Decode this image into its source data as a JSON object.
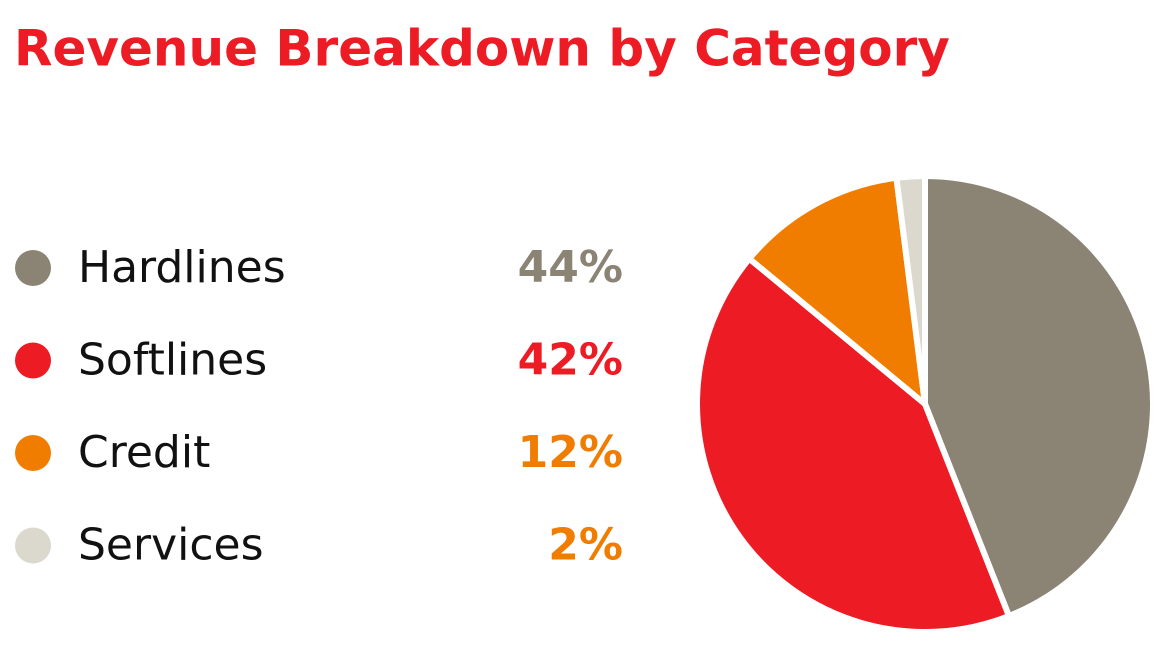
{
  "chart_data": {
    "type": "pie",
    "title": "Revenue Breakdown by Category",
    "categories": [
      "Hardlines",
      "Softlines",
      "Credit",
      "Services"
    ],
    "values": [
      44,
      42,
      12,
      2
    ],
    "value_labels": [
      "44%",
      "42%",
      "12%",
      "2%"
    ],
    "colors": [
      "#8b8474",
      "#ed1c24",
      "#f07d00",
      "#dbd8ce"
    ],
    "value_label_colors": [
      "#8b8474",
      "#ed1c24",
      "#f07d00",
      "#f07d00"
    ],
    "title_color": "#ed1c24"
  }
}
